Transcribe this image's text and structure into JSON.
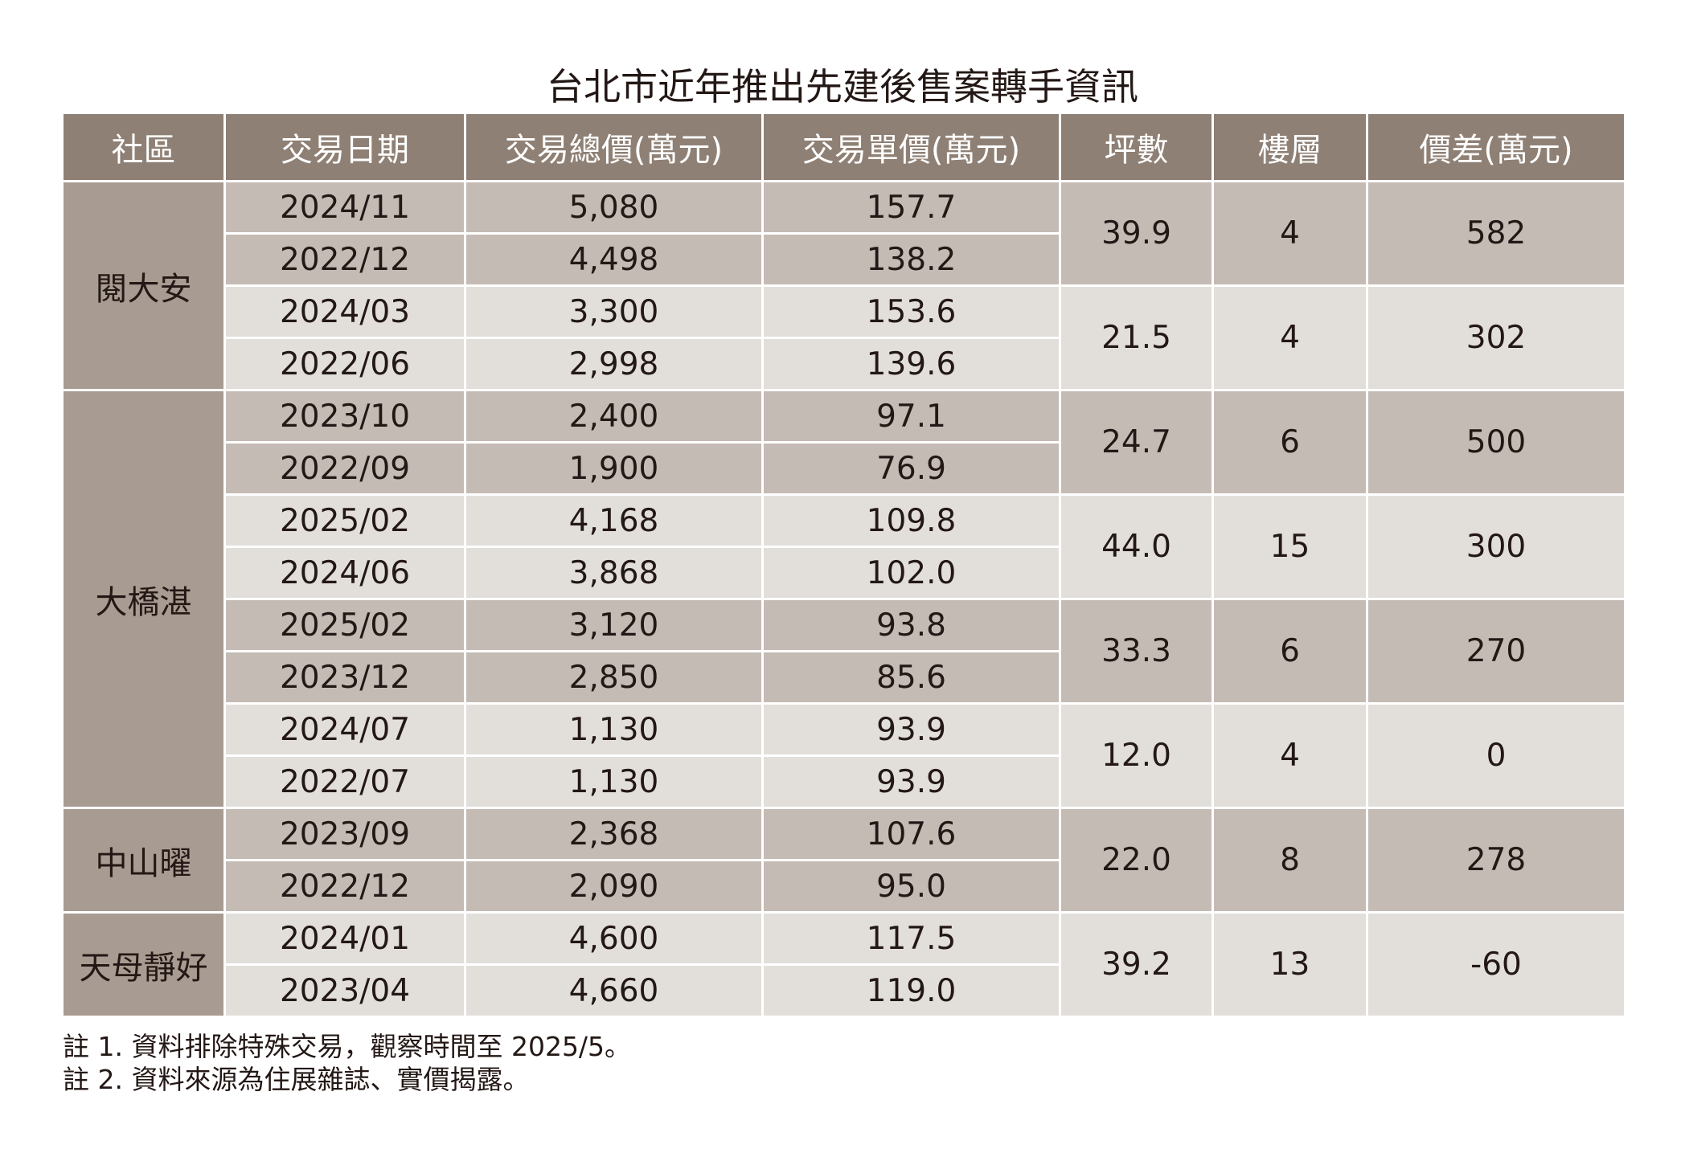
{
  "title": "台北市近年推出先建後售案轉手資訊",
  "headers": [
    "社區",
    "交易日期",
    "交易總價(萬元)",
    "交易單價(萬元)",
    "坪數",
    "樓層",
    "價差(萬元)"
  ],
  "colors": {
    "header_bg": "#8f8075",
    "community_bg": "#a89b91",
    "row_dark": "#c5bbb5",
    "row_light": "#e2dfdb",
    "text": "#231815"
  },
  "groups": [
    {
      "community": "閱大安",
      "units": [
        {
          "ping": "39.9",
          "floor": "4",
          "diff": "582",
          "tx": [
            {
              "date": "2024/11",
              "total": "5,080",
              "unit": "157.7"
            },
            {
              "date": "2022/12",
              "total": "4,498",
              "unit": "138.2"
            }
          ]
        },
        {
          "ping": "21.5",
          "floor": "4",
          "diff": "302",
          "tx": [
            {
              "date": "2024/03",
              "total": "3,300",
              "unit": "153.6"
            },
            {
              "date": "2022/06",
              "total": "2,998",
              "unit": "139.6"
            }
          ]
        }
      ]
    },
    {
      "community": "大橋湛",
      "units": [
        {
          "ping": "24.7",
          "floor": "6",
          "diff": "500",
          "tx": [
            {
              "date": "2023/10",
              "total": "2,400",
              "unit": "97.1"
            },
            {
              "date": "2022/09",
              "total": "1,900",
              "unit": "76.9"
            }
          ]
        },
        {
          "ping": "44.0",
          "floor": "15",
          "diff": "300",
          "tx": [
            {
              "date": "2025/02",
              "total": "4,168",
              "unit": "109.8"
            },
            {
              "date": "2024/06",
              "total": "3,868",
              "unit": "102.0"
            }
          ]
        },
        {
          "ping": "33.3",
          "floor": "6",
          "diff": "270",
          "tx": [
            {
              "date": "2025/02",
              "total": "3,120",
              "unit": "93.8"
            },
            {
              "date": "2023/12",
              "total": "2,850",
              "unit": "85.6"
            }
          ]
        },
        {
          "ping": "12.0",
          "floor": "4",
          "diff": "0",
          "tx": [
            {
              "date": "2024/07",
              "total": "1,130",
              "unit": "93.9"
            },
            {
              "date": "2022/07",
              "total": "1,130",
              "unit": "93.9"
            }
          ]
        }
      ]
    },
    {
      "community": "中山曜",
      "units": [
        {
          "ping": "22.0",
          "floor": "8",
          "diff": "278",
          "tx": [
            {
              "date": "2023/09",
              "total": "2,368",
              "unit": "107.6"
            },
            {
              "date": "2022/12",
              "total": "2,090",
              "unit": "95.0"
            }
          ]
        }
      ]
    },
    {
      "community": "天母靜好",
      "units": [
        {
          "ping": "39.2",
          "floor": "13",
          "diff": "-60",
          "tx": [
            {
              "date": "2024/01",
              "total": "4,600",
              "unit": "117.5"
            },
            {
              "date": "2023/04",
              "total": "4,660",
              "unit": "119.0"
            }
          ]
        }
      ]
    }
  ],
  "notes": [
    "註 1. 資料排除特殊交易，觀察時間至 2025/5。",
    "註 2. 資料來源為住展雜誌、實價揭露。"
  ]
}
